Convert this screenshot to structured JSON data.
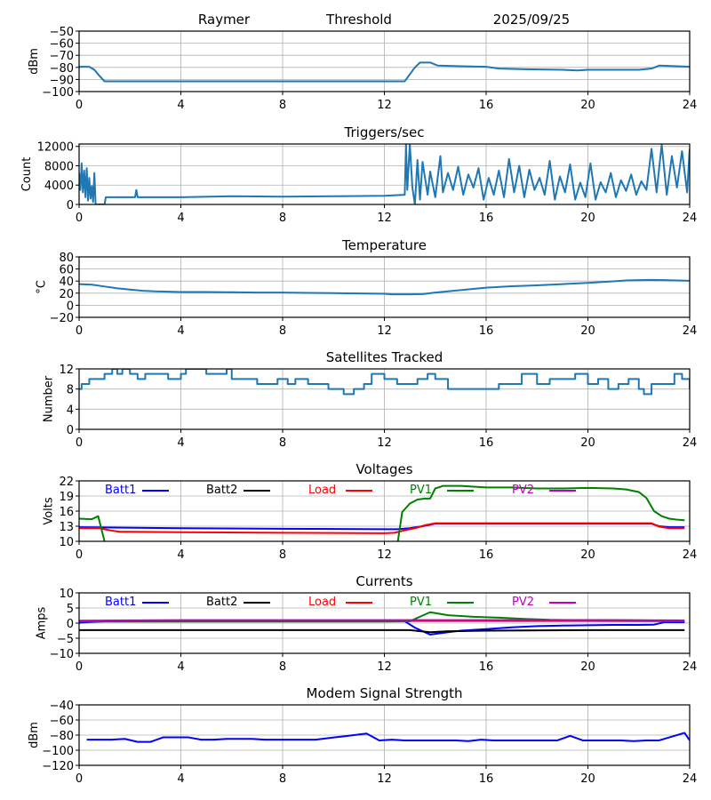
{
  "header": {
    "station": "Raymer",
    "mode": "Threshold",
    "date": "2025/09/25"
  },
  "chart_data": [
    {
      "id": "threshold",
      "type": "line",
      "title": "",
      "xlabel": "",
      "ylabel": "dBm",
      "xlim": [
        0,
        24
      ],
      "ylim": [
        -100,
        -50
      ],
      "xticks": [
        0,
        4,
        8,
        12,
        16,
        20,
        24
      ],
      "yticks": [
        -100,
        -90,
        -80,
        -70,
        -60,
        -50
      ],
      "ytick_labels": [
        "−100",
        "−90",
        "−80",
        "−70",
        "−60",
        "−50"
      ],
      "grid": true,
      "series": [
        {
          "name": "Threshold",
          "color": "#1f77b4",
          "x": [
            0,
            0.4,
            0.6,
            0.8,
            1.0,
            2,
            4,
            8,
            12,
            12.8,
            13.2,
            13.4,
            13.8,
            14.1,
            15,
            16,
            16.5,
            17.5,
            19,
            19.6,
            20,
            21,
            22,
            22.5,
            22.8,
            23.5,
            24
          ],
          "y": [
            -79.5,
            -79.5,
            -82,
            -87,
            -91.5,
            -91.5,
            -91.5,
            -91.5,
            -91.5,
            -91.5,
            -80,
            -76,
            -76,
            -78.5,
            -79,
            -79.5,
            -81,
            -81.5,
            -82,
            -82.5,
            -82,
            -82,
            -82,
            -81,
            -78.5,
            -79,
            -79.5
          ]
        }
      ]
    },
    {
      "id": "triggers",
      "type": "line",
      "title": "Triggers/sec",
      "xlabel": "",
      "ylabel": "Count",
      "xlim": [
        0,
        24
      ],
      "ylim": [
        0,
        12500
      ],
      "xticks": [
        0,
        4,
        8,
        12,
        16,
        20,
        24
      ],
      "yticks": [
        0,
        4000,
        8000,
        12000
      ],
      "ytick_labels": [
        "0",
        "4000",
        "8000",
        "12000"
      ],
      "grid": true,
      "series": [
        {
          "name": "Triggers",
          "color": "#1f77b4",
          "x": [
            0,
            0.05,
            0.1,
            0.15,
            0.2,
            0.25,
            0.3,
            0.35,
            0.4,
            0.45,
            0.5,
            0.55,
            0.6,
            0.65,
            0.7,
            1.0,
            1.05,
            2.2,
            2.25,
            2.3,
            4,
            6,
            8,
            10,
            12,
            12.8,
            12.85,
            12.9,
            13.0,
            13.1,
            13.2,
            13.3,
            13.4,
            13.5,
            13.7,
            13.8,
            14.0,
            14.2,
            14.3,
            14.5,
            14.7,
            14.9,
            15.1,
            15.3,
            15.5,
            15.7,
            15.9,
            16.1,
            16.3,
            16.5,
            16.7,
            16.9,
            17.1,
            17.3,
            17.5,
            17.7,
            17.9,
            18.1,
            18.3,
            18.5,
            18.7,
            18.9,
            19.1,
            19.3,
            19.5,
            19.7,
            19.9,
            20.1,
            20.3,
            20.5,
            20.7,
            20.9,
            21.1,
            21.3,
            21.5,
            21.7,
            21.9,
            22.1,
            22.3,
            22.5,
            22.7,
            22.9,
            23.1,
            23.3,
            23.5,
            23.7,
            23.9,
            24
          ],
          "y": [
            6500,
            3000,
            8500,
            2500,
            7000,
            1500,
            7500,
            800,
            5500,
            1200,
            3800,
            500,
            6500,
            0,
            0,
            0,
            1500,
            1500,
            3000,
            1500,
            1500,
            1700,
            1600,
            1700,
            1800,
            2000,
            12500,
            3000,
            12500,
            3500,
            0,
            9200,
            1000,
            8800,
            2000,
            6800,
            1500,
            10000,
            2500,
            6500,
            3000,
            7800,
            2000,
            6200,
            3500,
            7500,
            1000,
            5500,
            2000,
            7000,
            1500,
            9400,
            2500,
            8000,
            1500,
            7200,
            3000,
            5500,
            2000,
            9000,
            1000,
            5800,
            2500,
            8300,
            1000,
            4500,
            1500,
            8500,
            1000,
            4600,
            2500,
            6500,
            1500,
            5000,
            2800,
            6200,
            2000,
            4800,
            3000,
            11500,
            2500,
            12400,
            2000,
            10000,
            3500,
            11000,
            2500,
            11500
          ]
        }
      ]
    },
    {
      "id": "temperature",
      "type": "line",
      "title": "Temperature",
      "xlabel": "",
      "ylabel": "°C",
      "xlim": [
        0,
        24
      ],
      "ylim": [
        -20,
        80
      ],
      "xticks": [
        0,
        4,
        8,
        12,
        16,
        20,
        24
      ],
      "yticks": [
        -20,
        0,
        20,
        40,
        60,
        80
      ],
      "ytick_labels": [
        "−20",
        "0",
        "20",
        "40",
        "60",
        "80"
      ],
      "grid": true,
      "series": [
        {
          "name": "Temperature",
          "color": "#1f77b4",
          "x": [
            0,
            0.5,
            1,
            1.5,
            2,
            2.5,
            3,
            3.5,
            4,
            5,
            6,
            7,
            8,
            9,
            10,
            11,
            12,
            12.3,
            13,
            13.5,
            14,
            15,
            16,
            17,
            18,
            19,
            20,
            21,
            21.5,
            22,
            22.5,
            23,
            23.5,
            24
          ],
          "y": [
            35,
            34,
            31,
            28,
            26,
            24,
            23,
            22.5,
            22,
            22,
            21.5,
            21,
            21,
            20.5,
            20,
            19.5,
            19,
            18,
            18,
            18.5,
            21,
            25,
            29,
            31.5,
            33,
            35,
            37,
            39.5,
            41,
            41.5,
            42,
            41.5,
            41,
            40.5
          ]
        }
      ]
    },
    {
      "id": "satellites",
      "type": "line",
      "title": "Satellites Tracked",
      "xlabel": "",
      "ylabel": "Number",
      "xlim": [
        0,
        24
      ],
      "ylim": [
        0,
        12
      ],
      "xticks": [
        0,
        4,
        8,
        12,
        16,
        20,
        24
      ],
      "yticks": [
        0,
        4,
        8,
        12
      ],
      "ytick_labels": [
        "0",
        "4",
        "8",
        "12"
      ],
      "grid": true,
      "step": true,
      "series": [
        {
          "name": "Satellites",
          "color": "#1f77b4",
          "x": [
            0,
            0.1,
            0.4,
            0.7,
            1.0,
            1.3,
            1.5,
            1.7,
            2.0,
            2.3,
            2.6,
            3.0,
            3.5,
            4.0,
            4.2,
            4.6,
            5.0,
            5.3,
            5.8,
            6.0,
            6.5,
            7.0,
            7.3,
            7.8,
            8.2,
            8.5,
            9.0,
            9.3,
            9.8,
            10.1,
            10.4,
            10.8,
            11.2,
            11.5,
            12.0,
            12.5,
            13.0,
            13.3,
            13.7,
            14.0,
            14.5,
            15.0,
            15.5,
            16.0,
            16.5,
            17.0,
            17.4,
            18.0,
            18.5,
            19.0,
            19.5,
            20.0,
            20.4,
            20.8,
            21.2,
            21.6,
            22.0,
            22.2,
            22.5,
            23.0,
            23.4,
            23.7,
            24
          ],
          "y": [
            8,
            9,
            10,
            10,
            11,
            12,
            11,
            12,
            11,
            10,
            11,
            11,
            10,
            11,
            12,
            12,
            11,
            11,
            12,
            10,
            10,
            9,
            9,
            10,
            9,
            10,
            9,
            9,
            8,
            8,
            7,
            8,
            9,
            11,
            10,
            9,
            9,
            10,
            11,
            10,
            8,
            8,
            8,
            8,
            9,
            9,
            11,
            9,
            10,
            10,
            11,
            9,
            10,
            8,
            9,
            10,
            8,
            7,
            9,
            9,
            11,
            10,
            8
          ]
        }
      ]
    },
    {
      "id": "voltages",
      "type": "line",
      "title": "Voltages",
      "xlabel": "",
      "ylabel": "Volts",
      "xlim": [
        0,
        24
      ],
      "ylim": [
        10,
        22
      ],
      "xticks": [
        0,
        4,
        8,
        12,
        16,
        20,
        24
      ],
      "yticks": [
        10,
        13,
        16,
        19,
        22
      ],
      "ytick_labels": [
        "10",
        "13",
        "16",
        "19",
        "22"
      ],
      "grid": true,
      "legend": "top",
      "series": [
        {
          "name": "Batt1",
          "color": "#0000ff",
          "x": [
            0,
            4,
            8,
            12,
            12.5,
            13,
            13.5,
            14,
            16,
            20,
            22.5,
            22.8,
            23.2,
            23.8
          ],
          "y": [
            12.8,
            12.6,
            12.5,
            12.4,
            12.4,
            12.6,
            13.0,
            13.5,
            13.5,
            13.5,
            13.5,
            13.0,
            12.8,
            12.8
          ]
        },
        {
          "name": "Batt2",
          "color": "#000000",
          "x": [],
          "y": []
        },
        {
          "name": "Load",
          "color": "#ff0000",
          "x": [
            0,
            0.8,
            1.2,
            1.6,
            2,
            4,
            8,
            12,
            12.4,
            12.8,
            13.2,
            13.6,
            14,
            16,
            20,
            22.5,
            22.8,
            23.2,
            23.8
          ],
          "y": [
            12.6,
            12.6,
            12.2,
            11.9,
            11.9,
            11.8,
            11.7,
            11.6,
            11.7,
            12.2,
            12.6,
            13.2,
            13.6,
            13.6,
            13.6,
            13.6,
            12.9,
            12.6,
            12.6
          ]
        },
        {
          "name": "PV1",
          "color": "#008000",
          "x": [
            0,
            0.5,
            0.75,
            1.0,
            1.05,
            12.5,
            12.7,
            13.0,
            13.3,
            13.6,
            13.8,
            14.0,
            14.3,
            15,
            16,
            17,
            18,
            19,
            20,
            21,
            21.5,
            22,
            22.3,
            22.6,
            22.9,
            23.2,
            23.5,
            23.8
          ],
          "y": [
            14.5,
            14.4,
            15.0,
            10.0,
            9.0,
            9.0,
            15.8,
            17.5,
            18.3,
            18.5,
            18.5,
            20.5,
            21.0,
            21.0,
            20.7,
            20.7,
            20.5,
            20.5,
            20.6,
            20.5,
            20.3,
            19.8,
            18.6,
            16.0,
            15.0,
            14.5,
            14.3,
            14.2
          ]
        },
        {
          "name": "PV2",
          "color": "#bf00bf",
          "x": [],
          "y": []
        }
      ]
    },
    {
      "id": "currents",
      "type": "line",
      "title": "Currents",
      "xlabel": "",
      "ylabel": "Amps",
      "xlim": [
        0,
        24
      ],
      "ylim": [
        -10,
        10
      ],
      "xticks": [
        0,
        4,
        8,
        12,
        16,
        20,
        24
      ],
      "yticks": [
        -10,
        -5,
        0,
        5,
        10
      ],
      "ytick_labels": [
        "−10",
        "−5",
        "0",
        "5",
        "10"
      ],
      "grid": true,
      "legend": "top",
      "series": [
        {
          "name": "Batt1",
          "color": "#0000ff",
          "x": [
            0,
            0.3,
            1,
            4,
            8,
            12,
            12.8,
            13.2,
            13.8,
            14.5,
            15,
            16,
            17,
            18,
            19,
            20,
            21,
            22,
            22.6,
            23.0,
            23.8
          ],
          "y": [
            0.1,
            0.3,
            0.6,
            0.6,
            0.6,
            0.6,
            0.6,
            -1.5,
            -3.8,
            -3.0,
            -2.5,
            -2.0,
            -1.4,
            -1.0,
            -0.8,
            -0.7,
            -0.6,
            -0.6,
            -0.5,
            0.3,
            0.3
          ]
        },
        {
          "name": "Batt2",
          "color": "#000000",
          "x": [
            0,
            4,
            8,
            12,
            13,
            13.8,
            14.5,
            16,
            20,
            23.8
          ],
          "y": [
            -2.3,
            -2.3,
            -2.3,
            -2.3,
            -2.3,
            -3.0,
            -2.7,
            -2.5,
            -2.3,
            -2.3
          ]
        },
        {
          "name": "Load",
          "color": "#ff0000",
          "x": [
            0,
            4,
            8,
            12,
            16,
            20,
            23.8
          ],
          "y": [
            0.6,
            0.7,
            0.7,
            0.7,
            0.7,
            0.7,
            0.6
          ]
        },
        {
          "name": "PV1",
          "color": "#008000",
          "x": [
            0,
            4,
            8,
            12,
            13.0,
            13.5,
            13.8,
            14.5,
            15.5,
            16.5,
            17.5,
            18.5,
            19.5,
            21,
            22.5,
            23.8
          ],
          "y": [
            0.5,
            0.5,
            0.5,
            0.5,
            0.6,
            2.5,
            3.6,
            2.6,
            2.1,
            1.8,
            1.4,
            1.1,
            1.0,
            1.0,
            0.9,
            0.6
          ]
        },
        {
          "name": "PV2",
          "color": "#bf00bf",
          "x": [
            0,
            4,
            8,
            12,
            16,
            20,
            23.8
          ],
          "y": [
            0.8,
            1.0,
            1.0,
            1.0,
            1.0,
            1.0,
            0.9
          ]
        }
      ]
    },
    {
      "id": "modem",
      "type": "line",
      "title": "Modem Signal Strength",
      "xlabel": "",
      "ylabel": "dBm",
      "xlim": [
        0,
        24
      ],
      "ylim": [
        -120,
        -40
      ],
      "xticks": [
        0,
        4,
        8,
        12,
        16,
        20,
        24
      ],
      "yticks": [
        -120,
        -100,
        -80,
        -60,
        -40
      ],
      "ytick_labels": [
        "−120",
        "−100",
        "−80",
        "−60",
        "−40"
      ],
      "grid": true,
      "series": [
        {
          "name": "Modem",
          "color": "#0000ff",
          "x": [
            0.3,
            1.3,
            1.8,
            2.3,
            2.8,
            3.3,
            3.8,
            4.3,
            4.8,
            5.3,
            5.8,
            6.8,
            7.3,
            8.3,
            9.3,
            9.8,
            10.3,
            10.8,
            11.3,
            11.8,
            12.3,
            12.8,
            13.8,
            14.8,
            15.3,
            15.8,
            16.3,
            17.3,
            18.3,
            18.8,
            19.3,
            19.8,
            20.3,
            20.8,
            21.3,
            21.8,
            22.3,
            22.8,
            23.3,
            23.8,
            24.0
          ],
          "y": [
            -86,
            -86,
            -85,
            -89,
            -89,
            -83,
            -83,
            -83,
            -86,
            -86,
            -85,
            -85,
            -86,
            -86,
            -86,
            -84,
            -82,
            -80,
            -78,
            -87,
            -86,
            -87,
            -87,
            -87,
            -88,
            -86,
            -87,
            -87,
            -87,
            -87,
            -81,
            -87,
            -87,
            -87,
            -87,
            -88,
            -87,
            -87,
            -82,
            -77,
            -87
          ]
        }
      ]
    }
  ]
}
